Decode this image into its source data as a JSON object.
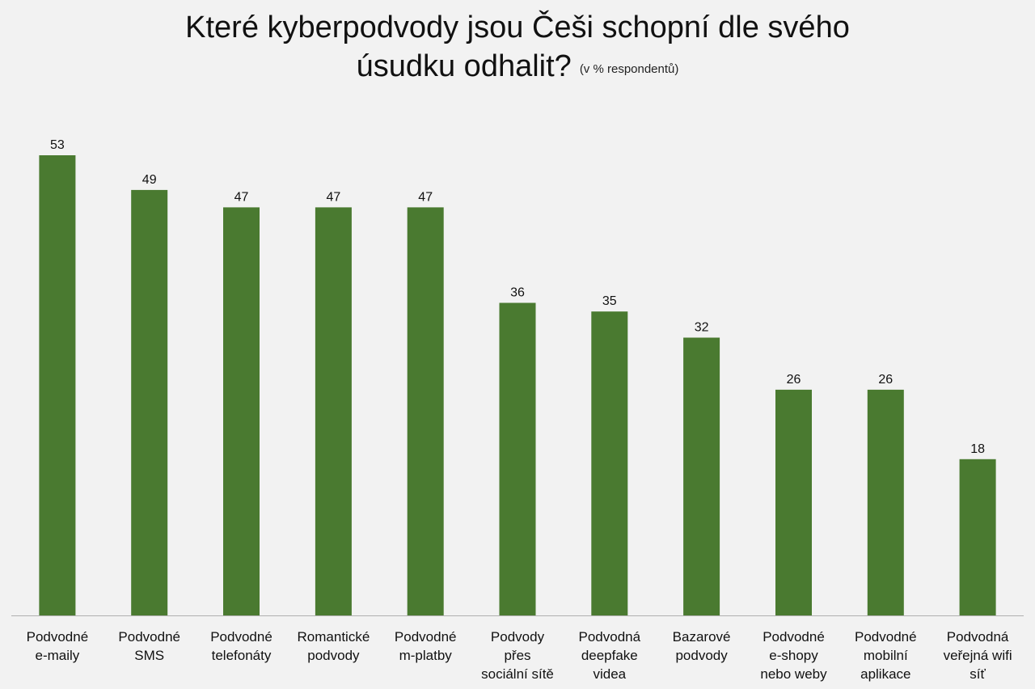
{
  "chart_data": {
    "type": "bar",
    "title": "Které kyberpodvody jsou Češi schopní dle svého úsudku odhalit?",
    "title_line_1": "Které kyberpodvody jsou Češi schopní dle svého",
    "title_line_2": "úsudku odhalit?",
    "subtitle": "(v % respondentů)",
    "xlabel": "",
    "ylabel": "",
    "ylim": [
      0,
      53
    ],
    "grid": false,
    "legend": "none",
    "bar_color": "#4a7a30",
    "categories": [
      [
        "Podvodné",
        "e-maily"
      ],
      [
        "Podvodné",
        "SMS"
      ],
      [
        "Podvodné",
        "telefonáty"
      ],
      [
        "Romantické",
        "podvody"
      ],
      [
        "Podvodné",
        "m-platby"
      ],
      [
        "Podvody",
        "přes",
        "sociální sítě"
      ],
      [
        "Podvodná",
        "deepfake",
        "videa"
      ],
      [
        "Bazarové",
        "podvody"
      ],
      [
        "Podvodné",
        "e-shopy",
        "nebo weby"
      ],
      [
        "Podvodné",
        "mobilní",
        "aplikace"
      ],
      [
        "Podvodná",
        "veřejná wifi",
        "síť"
      ]
    ],
    "values": [
      53,
      49,
      47,
      47,
      47,
      36,
      35,
      32,
      26,
      26,
      18
    ],
    "display_values": [
      "53",
      "49",
      "47",
      "47",
      "47",
      "36",
      "35",
      "32",
      "26",
      "26",
      "18"
    ]
  }
}
